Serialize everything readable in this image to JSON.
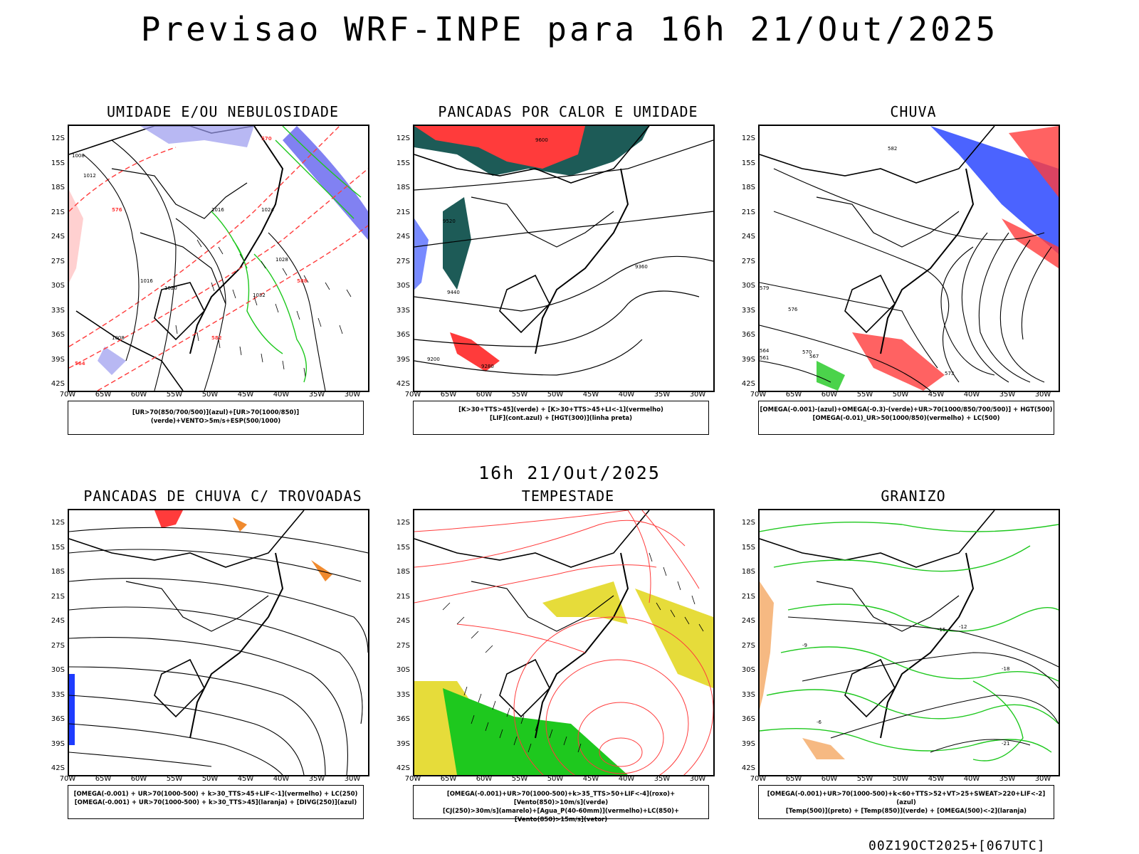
{
  "page": {
    "title": "Previsao WRF-INPE  para 16h 21/Out/2025",
    "middle_title": "16h 21/Out/2025",
    "footer": "00Z19OCT2025+[067UTC]"
  },
  "axes": {
    "lat_labels": [
      "12S",
      "15S",
      "18S",
      "21S",
      "24S",
      "27S",
      "30S",
      "33S",
      "36S",
      "39S",
      "42S"
    ],
    "lon_labels": [
      "70W",
      "65W",
      "60W",
      "55W",
      "50W",
      "45W",
      "40W",
      "35W",
      "30W"
    ]
  },
  "colors": {
    "red": "#ff3b3b",
    "green": "#1ec81e",
    "blue": "#1e3cff",
    "lavender": "#9a9aee",
    "darkteal": "#1d5b57",
    "yellow": "#e6dc3a",
    "orange": "#f08a2e",
    "magenta": "#c020e0",
    "black": "#000000"
  },
  "panels": [
    {
      "title": "UMIDADE E/OU NEBULOSIDADE",
      "legend": [
        "[UR>70(850/700/500)](azul)+[UR>70(1000/850)](verde)+VENTO>5m/s+ESP(500/1000)"
      ],
      "labels": [
        "1008",
        "1012",
        "1016",
        "1020",
        "1024",
        "1028",
        "1032",
        "1016",
        "1008",
        "576",
        "570",
        "582",
        "588",
        "564"
      ]
    },
    {
      "title": "PANCADAS POR CALOR E UMIDADE",
      "legend": [
        "[K>30+TTS>45](verde) + [K>30+TTS>45+LI<-1](vermelho)",
        "[LIF](cont.azul) + [HGT(300)](linha preta)"
      ],
      "labels": [
        "9600",
        "9520",
        "9440",
        "9360",
        "9280",
        "9200"
      ]
    },
    {
      "title": "CHUVA",
      "legend": [
        "[OMEGA(-0.001)-(azul)+OMEGA(-0.3)-(verde)+UR>70(1000/850/700/500)] + HGT(500)",
        "[OMEGA(-0.01)_UR>50(1000/850)(vermelho) + LC(500)"
      ],
      "labels": [
        "582",
        "576",
        "570",
        "564",
        "573",
        "567",
        "561",
        "579"
      ]
    },
    {
      "title": "PANCADAS DE CHUVA C/ TROVOADAS",
      "legend": [
        "[OMEGA(-0.001) + UR>70(1000-500) + k>30_TTS>45+LIF<-1](vermelho) + LC(250)",
        "[OMEGA(-0.001) + UR>70(1000-500) + k>30_TTS>45](laranja) + [DIVG(250)](azul)"
      ],
      "labels": []
    },
    {
      "title": "TEMPESTADE",
      "legend": [
        "[OMEGA(-0.001)+UR>70(1000-500)+k>35_TTS>50+LIF<-4](roxo)+[Vento(850)>10m/s](verde)",
        "[CJ(250)>30m/s](amarelo)+[Agua_P(40-60mm)](vermelho)+LC(850)+[Vento(850)>15m/s](vetor)"
      ],
      "labels": []
    },
    {
      "title": "GRANIZO",
      "legend": [
        "[OMEGA(-0.001)+UR>70(1000-500)+k<60+TTS>52+VT>25+SWEAT>220+LIF<-2](azul)",
        "[Temp(500)](preto) + [Temp(850)](verde) + [OMEGA(500)<-2](laranja)"
      ],
      "labels": [
        "-12",
        "-15",
        "-18",
        "-21",
        "-9",
        "-6"
      ]
    }
  ]
}
